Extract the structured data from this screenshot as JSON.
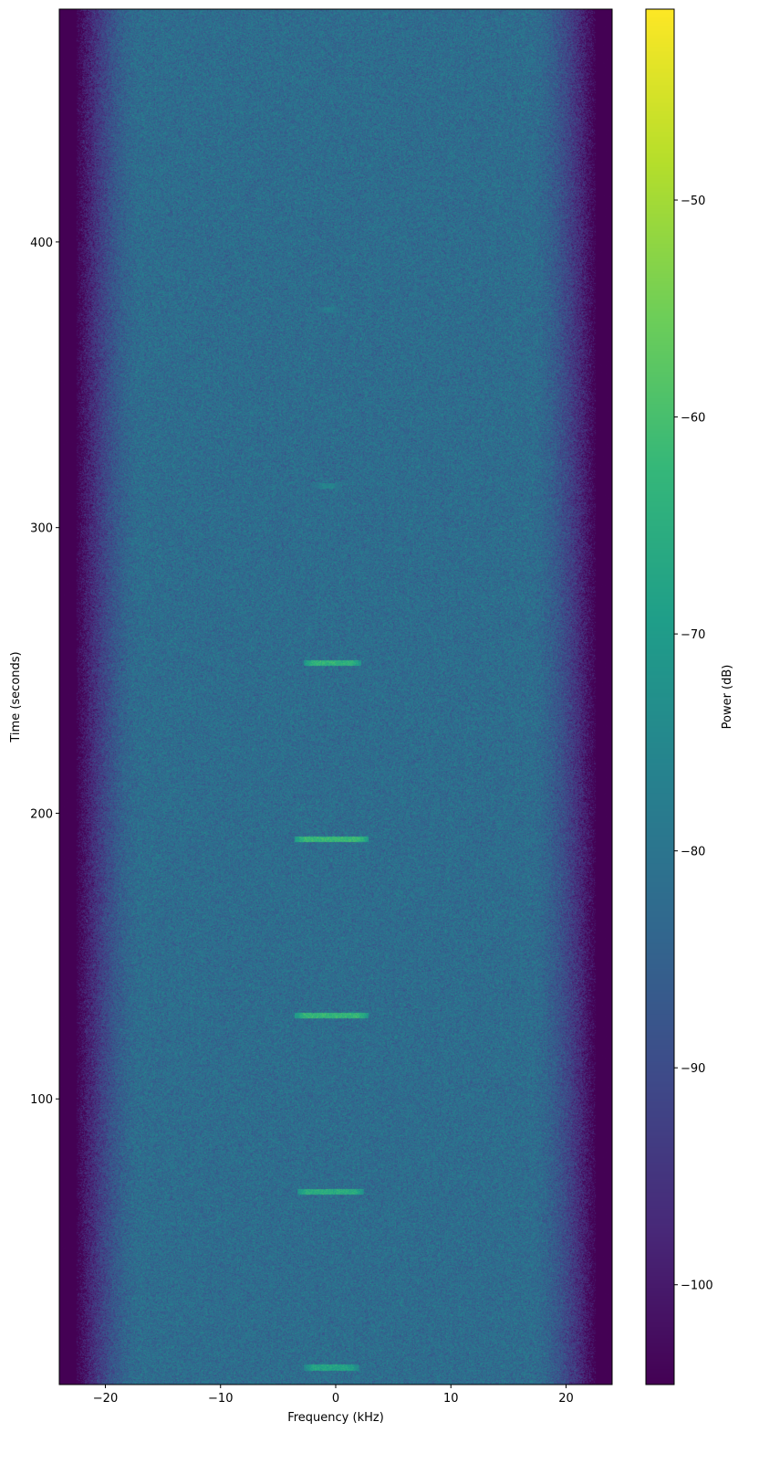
{
  "chart_data": {
    "type": "heatmap",
    "title": "",
    "xlabel": "Frequency (kHz)",
    "ylabel": "Time (seconds)",
    "xlim": [
      -24,
      24
    ],
    "ylim": [
      0,
      481.5
    ],
    "xticks": [
      -20,
      -10,
      0,
      10,
      20
    ],
    "xtick_labels": [
      "−20",
      "−10",
      "0",
      "10",
      "20"
    ],
    "yticks": [
      100,
      200,
      300,
      400
    ],
    "ytick_labels": [
      "100",
      "200",
      "300",
      "400"
    ],
    "colormap": "viridis",
    "colorbar": {
      "label": "Power (dB)",
      "range": [
        -104.6,
        -41.2
      ],
      "ticks": [
        -100,
        -90,
        -80,
        -70,
        -60,
        -50
      ],
      "tick_labels": [
        "−100",
        "−90",
        "−80",
        "−70",
        "−60",
        "−50"
      ]
    },
    "background": {
      "noise_floor_db": -82,
      "passband_khz": [
        -17,
        17
      ],
      "edge_rolloff_to_khz": 22.5,
      "out_of_band_db": -105
    },
    "bursts": [
      {
        "time_s": 6.1,
        "freq_khz": [
          -2.8,
          2.0
        ],
        "power_db": -68
      },
      {
        "time_s": 67.7,
        "freq_khz": [
          -3.4,
          2.4
        ],
        "power_db": -65
      },
      {
        "time_s": 129.4,
        "freq_khz": [
          -3.6,
          2.8
        ],
        "power_db": -63
      },
      {
        "time_s": 191.0,
        "freq_khz": [
          -3.6,
          2.8
        ],
        "power_db": -62
      },
      {
        "time_s": 252.7,
        "freq_khz": [
          -2.8,
          2.2
        ],
        "power_db": -64
      },
      {
        "time_s": 314.7,
        "freq_khz": [
          -2.0,
          0.5
        ],
        "power_db": -76
      },
      {
        "time_s": 376.4,
        "freq_khz": [
          -1.8,
          0.5
        ],
        "power_db": -78
      }
    ],
    "grid": false
  }
}
